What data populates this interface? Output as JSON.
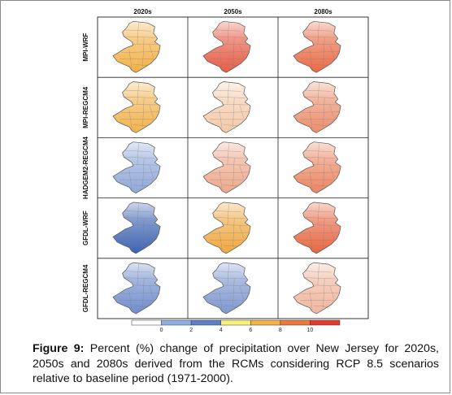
{
  "figure": {
    "columns": [
      "2020s",
      "2050s",
      "2080s"
    ],
    "rows": [
      "MPI-WRF",
      "MPI-REGCM4",
      "HADGEM2-REGCM4",
      "GFDL-WRF",
      "GFDL-REGCM4"
    ],
    "map_palette": {
      "MPI-WRF": [
        "#f3b045",
        "#e65c45",
        "#ea6a45"
      ],
      "MPI-REGCM4": [
        "#f2b24c",
        "#f4c9a8",
        "#ec8d6c"
      ],
      "HADGEM2-REGCM4": [
        "#8fa7d8",
        "#eea88a",
        "#ec8560"
      ],
      "GFDL-WRF": [
        "#3c63b2",
        "#efa73d",
        "#e86640"
      ],
      "GFDL-REGCM4": [
        "#6f8ccc",
        "#7e97d0",
        "#f0b59c"
      ]
    },
    "colorbar": {
      "tick_labels": [
        "0",
        "2",
        "4",
        "6",
        "8",
        "10"
      ],
      "colors": [
        "#ffffff",
        "#8eb0e0",
        "#5c7fc6",
        "#f7f07a",
        "#f3b24a",
        "#ec7a3c",
        "#e23a2e"
      ]
    }
  },
  "caption": {
    "label": "Figure 9:",
    "text": " Percent (%) change of precipitation over New Jersey for 2020s, 2050s and 2080s derived from the RCMs considering RCP 8.5 scenarios relative to baseline period (1971-2000)."
  }
}
